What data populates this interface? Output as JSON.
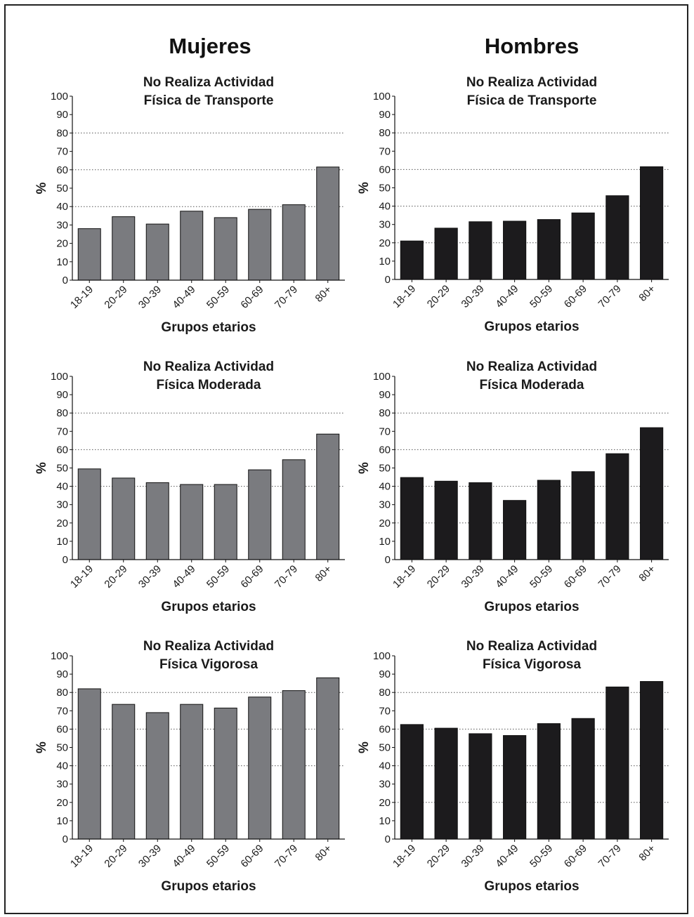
{
  "headings": {
    "left": "Mujeres",
    "right": "Hombres"
  },
  "colors": {
    "women": "#7a7b7f",
    "men": "#1c1b1d"
  },
  "chart_data": [
    {
      "id": "w-transporte",
      "type": "bar",
      "title": [
        "No Realiza Actividad",
        "Física de Transporte"
      ],
      "xlabel": "Grupos etarios",
      "ylabel": "%",
      "ylim": [
        0,
        100
      ],
      "yticks": [
        0,
        10,
        20,
        30,
        40,
        50,
        60,
        70,
        80,
        90,
        100
      ],
      "grid": "dotted at 40, 60, 80",
      "categories": [
        "18-19",
        "20-29",
        "30-39",
        "40-49",
        "50-59",
        "60-69",
        "70-79",
        "80+"
      ],
      "values": [
        28,
        34.5,
        30.5,
        37.5,
        34,
        38.5,
        41,
        61.5
      ]
    },
    {
      "id": "m-transporte",
      "type": "bar",
      "title": [
        "No Realiza Actividad",
        "Física de Transporte"
      ],
      "xlabel": "Grupos etarios",
      "ylabel": "%",
      "ylim": [
        0,
        100
      ],
      "yticks": [
        0,
        10,
        20,
        30,
        40,
        50,
        60,
        70,
        80,
        90,
        100
      ],
      "grid": "dotted at 20, 40, 60, 80",
      "categories": [
        "18-19",
        "20-29",
        "30-39",
        "40-49",
        "50-59",
        "60-69",
        "70-79",
        "80+"
      ],
      "values": [
        21,
        28,
        31.5,
        31.8,
        32.7,
        36.3,
        45.7,
        61.5
      ]
    },
    {
      "id": "w-moderada",
      "type": "bar",
      "title": [
        "No Realiza Actividad",
        "Física Moderada"
      ],
      "xlabel": "Grupos etarios",
      "ylabel": "%",
      "ylim": [
        0,
        100
      ],
      "yticks": [
        0,
        10,
        20,
        30,
        40,
        50,
        60,
        70,
        80,
        90,
        100
      ],
      "grid": "dotted at 40, 60, 80",
      "categories": [
        "18-19",
        "20-29",
        "30-39",
        "40-49",
        "50-59",
        "60-69",
        "70-79",
        "80+"
      ],
      "values": [
        49.5,
        44.5,
        42,
        41,
        41,
        49,
        54.5,
        68.5
      ]
    },
    {
      "id": "m-moderada",
      "type": "bar",
      "title": [
        "No Realiza Actividad",
        "Física Moderada"
      ],
      "xlabel": "Grupos etarios",
      "ylabel": "%",
      "ylim": [
        0,
        100
      ],
      "yticks": [
        0,
        10,
        20,
        30,
        40,
        50,
        60,
        70,
        80,
        90,
        100
      ],
      "grid": "dotted at 20, 40, 60, 80",
      "categories": [
        "18-19",
        "20-29",
        "30-39",
        "40-49",
        "50-59",
        "60-69",
        "70-79",
        "80+"
      ],
      "values": [
        44.8,
        42.8,
        42,
        32.3,
        43.3,
        48,
        57.8,
        72
      ]
    },
    {
      "id": "w-vigorosa",
      "type": "bar",
      "title": [
        "No Realiza Actividad",
        "Física Vigorosa"
      ],
      "xlabel": "Grupos etarios",
      "ylabel": "%",
      "ylim": [
        0,
        100
      ],
      "yticks": [
        0,
        10,
        20,
        30,
        40,
        50,
        60,
        70,
        80,
        90,
        100
      ],
      "grid": "dotted at 40, 60, 80",
      "categories": [
        "18-19",
        "20-29",
        "30-39",
        "40-49",
        "50-59",
        "60-69",
        "70-79",
        "80+"
      ],
      "values": [
        82,
        73.5,
        69,
        73.5,
        71.5,
        77.5,
        81,
        88
      ]
    },
    {
      "id": "m-vigorosa",
      "type": "bar",
      "title": [
        "No Realiza Actividad",
        "Física Vigorosa"
      ],
      "xlabel": "Grupos etarios",
      "ylabel": "%",
      "ylim": [
        0,
        100
      ],
      "yticks": [
        0,
        10,
        20,
        30,
        40,
        50,
        60,
        70,
        80,
        90,
        100
      ],
      "grid": "dotted at 20, 40, 60, 80",
      "categories": [
        "18-19",
        "20-29",
        "30-39",
        "40-49",
        "50-59",
        "60-69",
        "70-79",
        "80+"
      ],
      "values": [
        62.5,
        60.5,
        57.5,
        56.5,
        63,
        65.8,
        83,
        86
      ]
    }
  ]
}
